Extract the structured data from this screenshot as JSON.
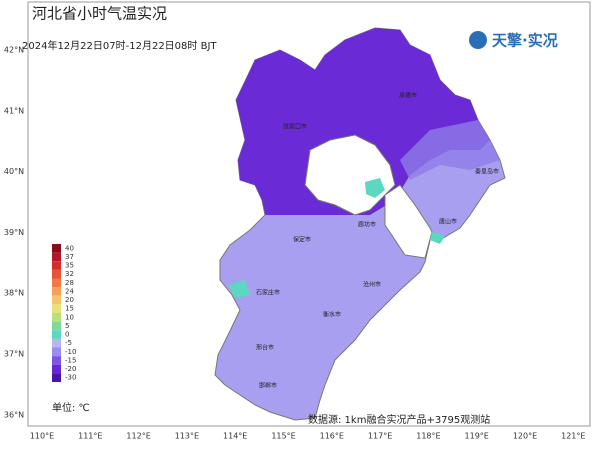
{
  "header": {
    "title": "河北省小时气温实况",
    "subtitle": "2024年12月22日07时-12月22日08时 BJT",
    "logo": "天擎·实况"
  },
  "axes": {
    "longitudes": [
      "110°E",
      "111°E",
      "112°E",
      "113°E",
      "114°E",
      "115°E",
      "116°E",
      "117°E",
      "118°E",
      "119°E",
      "120°E",
      "121°E"
    ],
    "latitudes": [
      "42°N",
      "41°N",
      "40°N",
      "39°N",
      "38°N",
      "37°N",
      "36°N"
    ]
  },
  "legend": {
    "unit": "单位: ℃",
    "items": [
      {
        "label": "40",
        "color": "#8b0a1a"
      },
      {
        "label": "37",
        "color": "#b5172a"
      },
      {
        "label": "35",
        "color": "#d62c2c"
      },
      {
        "label": "32",
        "color": "#e8533a"
      },
      {
        "label": "28",
        "color": "#f07a45"
      },
      {
        "label": "24",
        "color": "#f5a05a"
      },
      {
        "label": "20",
        "color": "#f7c46e"
      },
      {
        "label": "15",
        "color": "#e9e27a"
      },
      {
        "label": "10",
        "color": "#b8e07c"
      },
      {
        "label": "5",
        "color": "#7fd99a"
      },
      {
        "label": "0",
        "color": "#5ad8c0"
      },
      {
        "label": "-5",
        "color": "#b9b4f2"
      },
      {
        "label": "-10",
        "color": "#9a8cf0"
      },
      {
        "label": "-15",
        "color": "#7b55e6"
      },
      {
        "label": "-20",
        "color": "#6428d8"
      },
      {
        "label": "-30",
        "color": "#4a14a8"
      }
    ]
  },
  "cities": [
    "张家口市",
    "承德市",
    "秦皇岛市",
    "唐山市",
    "廊坊市",
    "保定市",
    "石家庄市",
    "沧州市",
    "衡水市",
    "邢台市",
    "邯郸市"
  ],
  "footer": {
    "source": "数据源: 1km融合实况产品+3795观测站"
  }
}
